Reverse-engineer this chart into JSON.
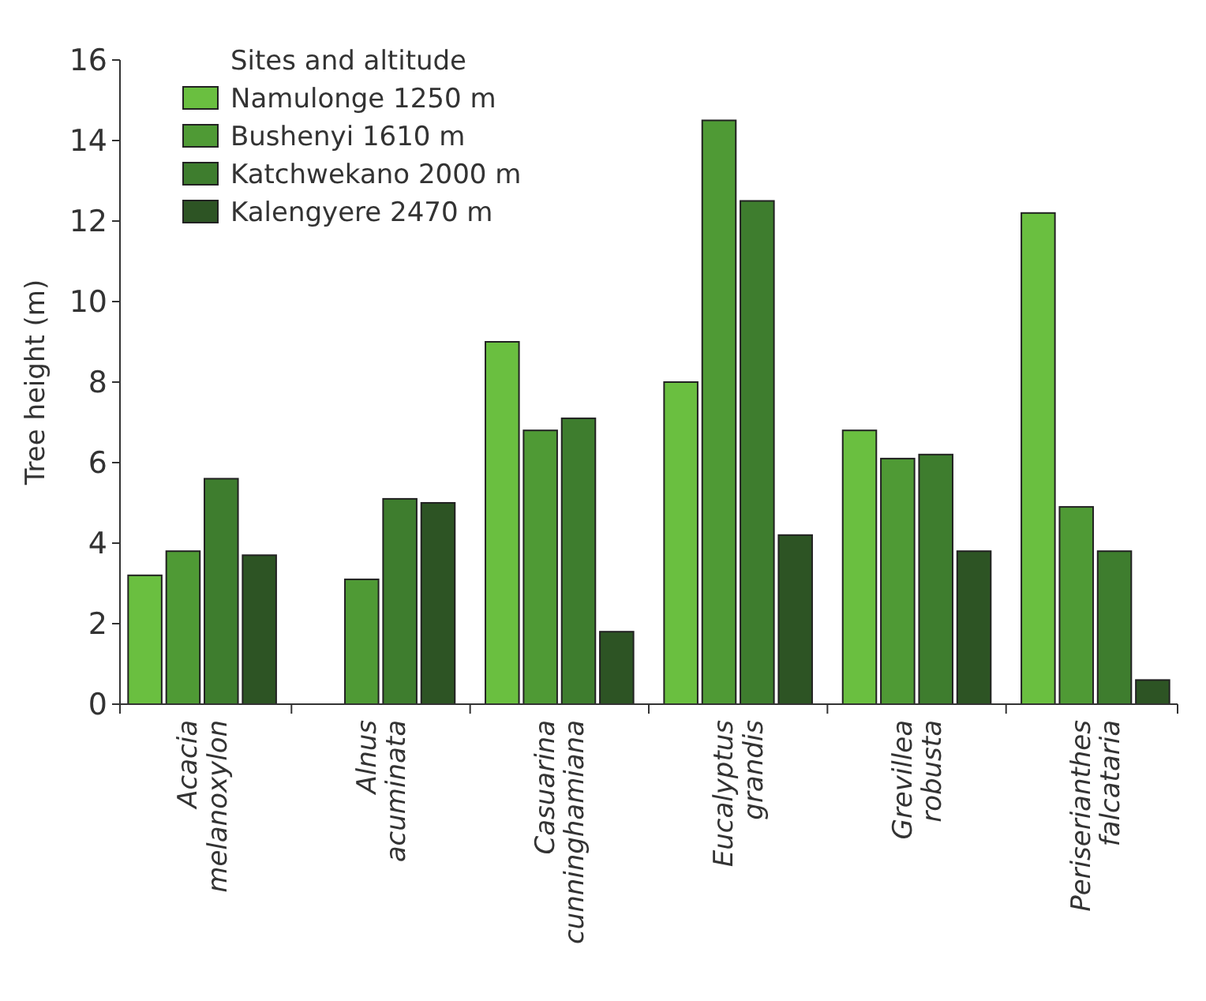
{
  "chart_data": {
    "type": "bar",
    "ylabel": "Tree height (m)",
    "legend_title": "Sites and altitude",
    "legend": "top left",
    "categories": [
      "Acacia melanoxylon",
      "Alnus acuminata",
      "Casuarina cunninghamiana",
      "Eucalyptus grandis",
      "Grevillea robusta",
      "Periserianthes falcataria"
    ],
    "series": [
      {
        "name": "Namulonge 1250 m",
        "color": "#6abf40",
        "values": [
          3.2,
          null,
          9.0,
          8.0,
          6.8,
          12.2
        ]
      },
      {
        "name": "Bushenyi 1610 m",
        "color": "#4f9a35",
        "values": [
          3.8,
          3.1,
          6.8,
          14.5,
          6.1,
          4.9
        ]
      },
      {
        "name": "Katchwekano 2000 m",
        "color": "#3e7d2e",
        "values": [
          5.6,
          5.1,
          7.1,
          12.5,
          6.2,
          3.8
        ]
      },
      {
        "name": "Kalengyere 2470 m",
        "color": "#2d5424",
        "values": [
          3.7,
          5.0,
          1.8,
          4.2,
          3.8,
          0.6
        ]
      }
    ],
    "ylim": [
      0,
      16
    ],
    "yticks": [
      0,
      2,
      4,
      6,
      8,
      10,
      12,
      14,
      16
    ],
    "grid": false
  }
}
